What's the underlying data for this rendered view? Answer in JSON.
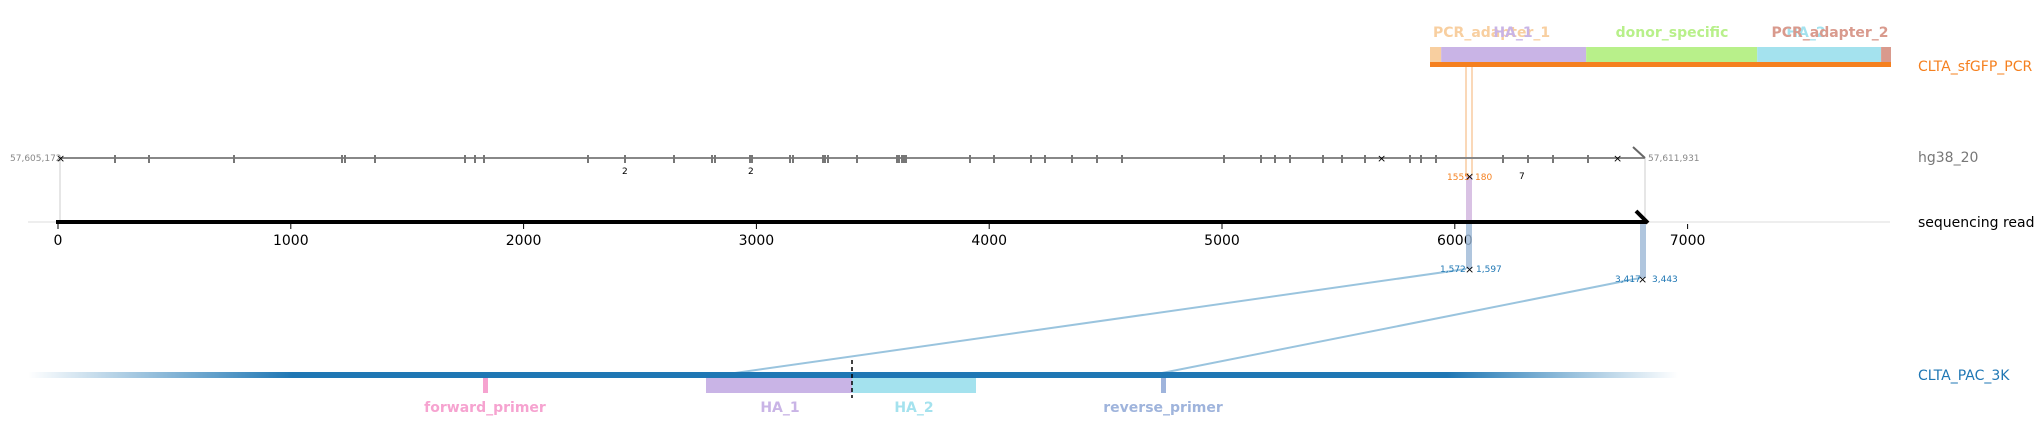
{
  "track_names": {
    "pcr": "CLTA_sfGFP_PCR",
    "genome": "hg38_20",
    "read": "sequencing read",
    "pac": "CLTA_PAC_3K"
  },
  "colors": {
    "pcr": "#f5801f",
    "genome": "#888888",
    "read": "#000000",
    "pac": "#1f77b4",
    "pcr_adapter_1": "#f8cfa0",
    "HA_1": "#c9b4e6",
    "donor_specific": "#b8f08a",
    "HA_2": "#a4e2ee",
    "PCR_adapter_2": "#d99a8d",
    "forward_primer": "#f6a3d0",
    "reverse_primer": "#9fb4dc"
  },
  "pcr_features": [
    {
      "name": "PCR_adapter_1",
      "start": 0,
      "end": 45
    },
    {
      "name": "HA_1",
      "start": 45,
      "end": 630
    },
    {
      "name": "donor_specific",
      "start": 630,
      "end": 1320
    },
    {
      "name": "HA_2",
      "start": 1320,
      "end": 1820
    },
    {
      "name": "PCR_adapter_2",
      "start": 1820,
      "end": 1860
    }
  ],
  "genome": {
    "left_coord": "57,605,172",
    "right_coord": "57,611,931",
    "numbered_marks": [
      "2",
      "2",
      "7"
    ]
  },
  "read": {
    "ticks": [
      "0",
      "1000",
      "2000",
      "3000",
      "4000",
      "5000",
      "6000",
      "7000"
    ]
  },
  "alignment_labels": {
    "pcr_left": "1555",
    "pcr_right": "180",
    "pac_a_left": "1,572",
    "pac_a_right": "1,597",
    "pac_b_left": "3,417",
    "pac_b_right": "3,443"
  },
  "pac_features": [
    {
      "name": "forward_primer"
    },
    {
      "name": "HA_1"
    },
    {
      "name": "HA_2"
    },
    {
      "name": "reverse_primer"
    }
  ]
}
